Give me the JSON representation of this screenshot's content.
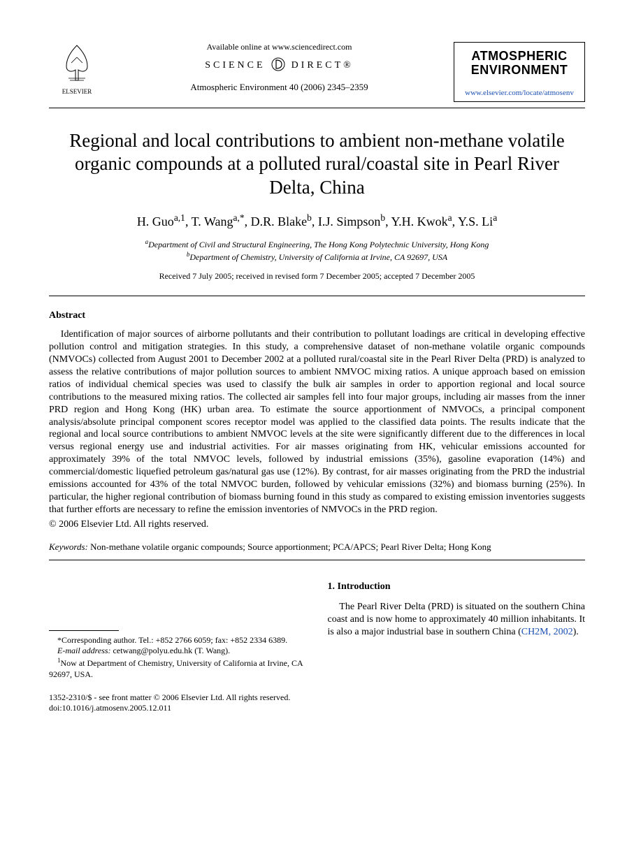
{
  "header": {
    "elsevier_label": "ELSEVIER",
    "available_line": "Available online at www.sciencedirect.com",
    "sd_brand_left": "SCIENCE",
    "sd_brand_right": "DIRECT®",
    "journal_ref": "Atmospheric Environment 40 (2006) 2345–2359",
    "journal_title_line1": "ATMOSPHERIC",
    "journal_title_line2": "ENVIRONMENT",
    "journal_url": "www.elsevier.com/locate/atmosenv"
  },
  "title": "Regional and local contributions to ambient non-methane volatile organic compounds at a polluted rural/coastal site in Pearl River Delta, China",
  "authors_html": "H. Guo<sup>a,1</sup>, T. Wang<sup>a,*</sup>, D.R. Blake<sup>b</sup>, I.J. Simpson<sup>b</sup>, Y.H. Kwok<sup>a</sup>, Y.S. Li<sup>a</sup>",
  "affiliations": {
    "a": "Department of Civil and Structural Engineering, The Hong Kong Polytechnic University, Hong Kong",
    "b": "Department of Chemistry, University of California at Irvine, CA 92697, USA"
  },
  "dates_line": "Received 7 July 2005; received in revised form 7 December 2005; accepted 7 December 2005",
  "abstract_heading": "Abstract",
  "abstract_text": "Identification of major sources of airborne pollutants and their contribution to pollutant loadings are critical in developing effective pollution control and mitigation strategies. In this study, a comprehensive dataset of non-methane volatile organic compounds (NMVOCs) collected from August 2001 to December 2002 at a polluted rural/coastal site in the Pearl River Delta (PRD) is analyzed to assess the relative contributions of major pollution sources to ambient NMVOC mixing ratios. A unique approach based on emission ratios of individual chemical species was used to classify the bulk air samples in order to apportion regional and local source contributions to the measured mixing ratios. The collected air samples fell into four major groups, including air masses from the inner PRD region and Hong Kong (HK) urban area. To estimate the source apportionment of NMVOCs, a principal component analysis/absolute principal component scores receptor model was applied to the classified data points. The results indicate that the regional and local source contributions to ambient NMVOC levels at the site were significantly different due to the differences in local versus regional energy use and industrial activities. For air masses originating from HK, vehicular emissions accounted for approximately 39% of the total NMVOC levels, followed by industrial emissions (35%), gasoline evaporation (14%) and commercial/domestic liquefied petroleum gas/natural gas use (12%). By contrast, for air masses originating from the PRD the industrial emissions accounted for 43% of the total NMVOC burden, followed by vehicular emissions (32%) and biomass burning (25%). In particular, the higher regional contribution of biomass burning found in this study as compared to existing emission inventories suggests that further efforts are necessary to refine the emission inventories of NMVOCs in the PRD region.",
  "copyright_line": "© 2006 Elsevier Ltd. All rights reserved.",
  "keywords_label": "Keywords:",
  "keywords_text": "Non-methane volatile organic compounds; Source apportionment; PCA/APCS; Pearl River Delta; Hong Kong",
  "footnotes": {
    "corr": "*Corresponding author. Tel.: +852 2766 6059; fax: +852 2334 6389.",
    "email_label": "E-mail address:",
    "email_value": "cetwang@polyu.edu.hk (T. Wang).",
    "now_at": "Now at Department of Chemistry, University of California at Irvine, CA 92697, USA."
  },
  "intro_heading": "1.  Introduction",
  "intro_text_pre": "The Pearl River Delta (PRD) is situated on the southern China coast and is now home to approximately 40 million inhabitants. It is also a major industrial base in southern China (",
  "intro_cite": "CH2M, 2002",
  "intro_text_post": ").",
  "front_matter_line": "1352-2310/$ - see front matter © 2006 Elsevier Ltd. All rights reserved.",
  "doi_line": "doi:10.1016/j.atmosenv.2005.12.011",
  "colors": {
    "text": "#000000",
    "link": "#1a4fb3",
    "background": "#ffffff",
    "rule": "#000000"
  }
}
